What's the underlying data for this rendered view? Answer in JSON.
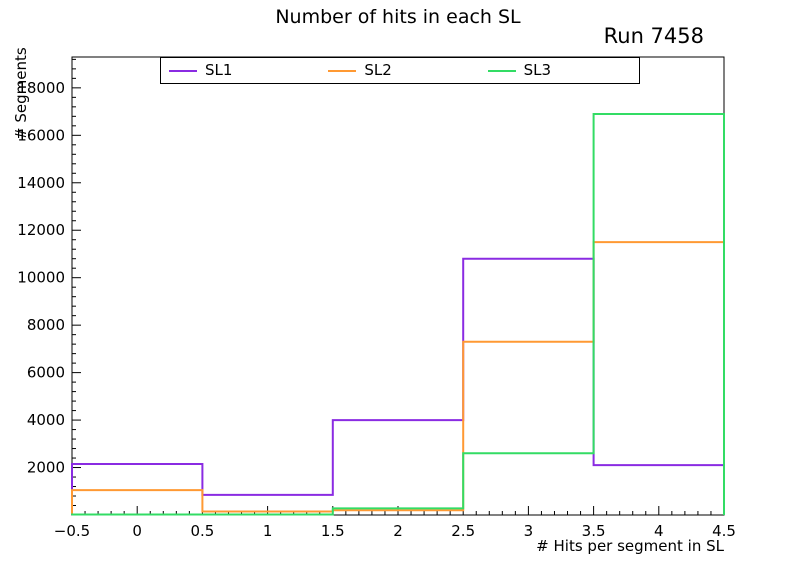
{
  "chart_data": {
    "type": "step-histogram",
    "title": "Number of hits in each SL",
    "annotation": "Run 7458",
    "xlabel": "# Hits per segment in SL",
    "ylabel": "# Segments",
    "xlim": [
      -0.5,
      4.5
    ],
    "ylim": [
      0,
      19300
    ],
    "grid": false,
    "legend_position": "top-inside",
    "bin_edges": [
      -0.5,
      0.5,
      1.5,
      2.5,
      3.5,
      4.5
    ],
    "x_ticks": [
      -0.5,
      0,
      0.5,
      1,
      1.5,
      2,
      2.5,
      3,
      3.5,
      4,
      4.5
    ],
    "x_tick_labels": [
      "−0.5",
      "0",
      "0.5",
      "1",
      "1.5",
      "2",
      "2.5",
      "3",
      "3.5",
      "4",
      "4.5"
    ],
    "y_ticks": [
      2000,
      4000,
      6000,
      8000,
      10000,
      12000,
      14000,
      16000,
      18000
    ],
    "y_tick_labels": [
      "2000",
      "4000",
      "6000",
      "8000",
      "10000",
      "12000",
      "14000",
      "16000",
      "18000"
    ],
    "series": [
      {
        "name": "SL1",
        "color": "#8a2be2",
        "values": [
          2150,
          850,
          4000,
          10800,
          2100
        ]
      },
      {
        "name": "SL2",
        "color": "#ff9933",
        "values": [
          1050,
          150,
          200,
          7300,
          11500
        ]
      },
      {
        "name": "SL3",
        "color": "#32dc64",
        "values": [
          20,
          20,
          280,
          2600,
          16900
        ]
      }
    ]
  }
}
